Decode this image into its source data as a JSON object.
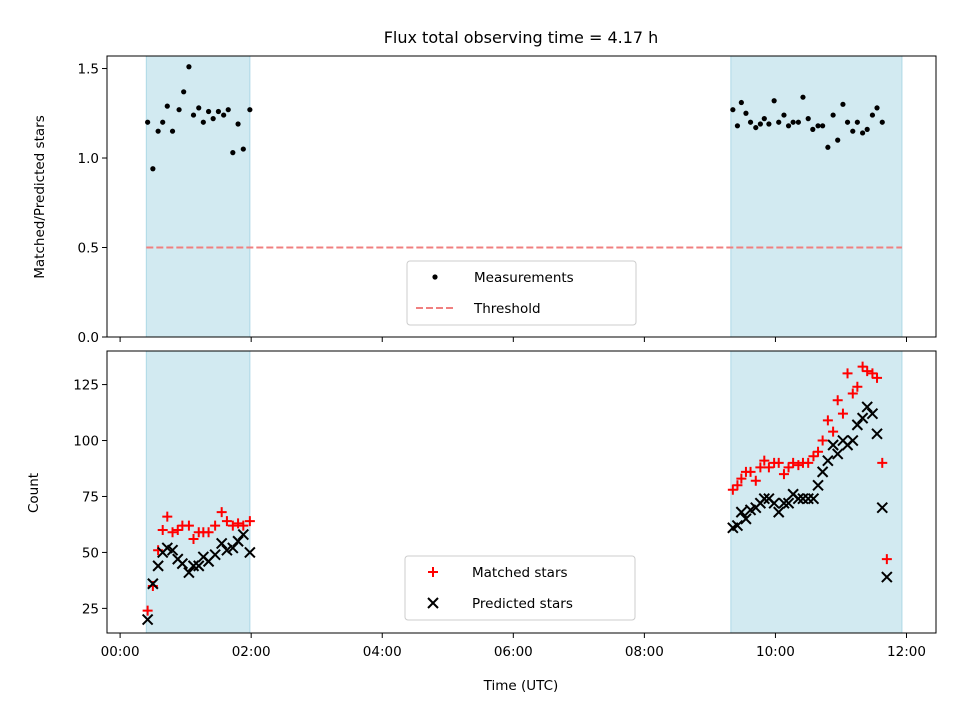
{
  "chart_data": [
    {
      "type": "scatter",
      "title": "Flux total observing time = 4.17 h",
      "xlabel": "",
      "ylabel": "Matched/Predicted stars",
      "xlim": [
        -0.2,
        12.45
      ],
      "ylim": [
        0,
        1.57
      ],
      "yticks": [
        0,
        0.5,
        1.0,
        1.5
      ],
      "ytick_labels": [
        "0.0",
        "0.5",
        "1.0",
        "1.5"
      ],
      "xticks": [
        0,
        2,
        4,
        6,
        8,
        10,
        12
      ],
      "observing_windows": [
        [
          0.4,
          1.98
        ],
        [
          9.32,
          11.93
        ]
      ],
      "window_color": "#add8e6",
      "threshold": {
        "value": 0.5,
        "x_range": [
          0.4,
          11.93
        ],
        "color": "#f08080"
      },
      "series": [
        {
          "name": "Measurements",
          "marker": "dot",
          "color": "#000000",
          "points": [
            [
              0.42,
              1.2
            ],
            [
              0.5,
              0.94
            ],
            [
              0.58,
              1.15
            ],
            [
              0.65,
              1.2
            ],
            [
              0.72,
              1.29
            ],
            [
              0.8,
              1.15
            ],
            [
              0.9,
              1.27
            ],
            [
              0.97,
              1.37
            ],
            [
              1.05,
              1.51
            ],
            [
              1.12,
              1.24
            ],
            [
              1.2,
              1.28
            ],
            [
              1.27,
              1.2
            ],
            [
              1.35,
              1.26
            ],
            [
              1.42,
              1.22
            ],
            [
              1.5,
              1.26
            ],
            [
              1.58,
              1.24
            ],
            [
              1.65,
              1.27
            ],
            [
              1.72,
              1.03
            ],
            [
              1.8,
              1.19
            ],
            [
              1.88,
              1.05
            ],
            [
              1.98,
              1.27
            ],
            [
              9.35,
              1.27
            ],
            [
              9.42,
              1.18
            ],
            [
              9.48,
              1.31
            ],
            [
              9.55,
              1.25
            ],
            [
              9.62,
              1.2
            ],
            [
              9.7,
              1.17
            ],
            [
              9.77,
              1.19
            ],
            [
              9.83,
              1.22
            ],
            [
              9.9,
              1.19
            ],
            [
              9.98,
              1.32
            ],
            [
              10.05,
              1.2
            ],
            [
              10.13,
              1.24
            ],
            [
              10.2,
              1.18
            ],
            [
              10.27,
              1.2
            ],
            [
              10.35,
              1.2
            ],
            [
              10.42,
              1.34
            ],
            [
              10.5,
              1.22
            ],
            [
              10.57,
              1.16
            ],
            [
              10.65,
              1.18
            ],
            [
              10.72,
              1.18
            ],
            [
              10.8,
              1.06
            ],
            [
              10.88,
              1.24
            ],
            [
              10.95,
              1.1
            ],
            [
              11.03,
              1.3
            ],
            [
              11.1,
              1.2
            ],
            [
              11.18,
              1.15
            ],
            [
              11.25,
              1.2
            ],
            [
              11.33,
              1.14
            ],
            [
              11.4,
              1.16
            ],
            [
              11.48,
              1.24
            ],
            [
              11.55,
              1.28
            ],
            [
              11.63,
              1.2
            ]
          ]
        }
      ],
      "legend": {
        "entries": [
          "Measurements",
          "Threshold"
        ],
        "position": "lower center"
      }
    },
    {
      "type": "scatter",
      "title": "",
      "xlabel": "Time (UTC)",
      "ylabel": "Count",
      "xlim": [
        -0.2,
        12.45
      ],
      "ylim": [
        14,
        140
      ],
      "yticks": [
        25,
        50,
        75,
        100,
        125
      ],
      "ytick_labels": [
        "25",
        "50",
        "75",
        "100",
        "125"
      ],
      "xticks": [
        0,
        2,
        4,
        6,
        8,
        10,
        12
      ],
      "xtick_labels": [
        "00:00",
        "02:00",
        "04:00",
        "06:00",
        "08:00",
        "10:00",
        "12:00"
      ],
      "observing_windows": [
        [
          0.4,
          1.98
        ],
        [
          9.32,
          11.93
        ]
      ],
      "window_color": "#add8e6",
      "series": [
        {
          "name": "Matched stars",
          "marker": "plus",
          "color": "#ff0000",
          "points": [
            [
              0.42,
              24
            ],
            [
              0.5,
              35
            ],
            [
              0.58,
              51
            ],
            [
              0.65,
              60
            ],
            [
              0.72,
              66
            ],
            [
              0.8,
              59
            ],
            [
              0.88,
              60
            ],
            [
              0.95,
              62
            ],
            [
              1.05,
              62
            ],
            [
              1.12,
              56
            ],
            [
              1.2,
              59
            ],
            [
              1.27,
              59
            ],
            [
              1.35,
              59
            ],
            [
              1.45,
              62
            ],
            [
              1.55,
              68
            ],
            [
              1.63,
              64
            ],
            [
              1.72,
              62
            ],
            [
              1.8,
              63
            ],
            [
              1.88,
              62
            ],
            [
              1.98,
              64
            ],
            [
              9.35,
              78
            ],
            [
              9.42,
              80
            ],
            [
              9.48,
              83
            ],
            [
              9.55,
              86
            ],
            [
              9.62,
              86
            ],
            [
              9.7,
              82
            ],
            [
              9.77,
              88
            ],
            [
              9.83,
              91
            ],
            [
              9.9,
              88
            ],
            [
              9.98,
              90
            ],
            [
              10.05,
              90
            ],
            [
              10.13,
              85
            ],
            [
              10.2,
              88
            ],
            [
              10.27,
              90
            ],
            [
              10.35,
              89
            ],
            [
              10.42,
              90
            ],
            [
              10.5,
              90
            ],
            [
              10.58,
              93
            ],
            [
              10.65,
              95
            ],
            [
              10.72,
              100
            ],
            [
              10.8,
              109
            ],
            [
              10.88,
              104
            ],
            [
              10.95,
              118
            ],
            [
              11.03,
              112
            ],
            [
              11.1,
              130
            ],
            [
              11.18,
              121
            ],
            [
              11.25,
              124
            ],
            [
              11.33,
              133
            ],
            [
              11.4,
              131
            ],
            [
              11.48,
              130
            ],
            [
              11.55,
              128
            ],
            [
              11.63,
              90
            ],
            [
              11.7,
              47
            ]
          ]
        },
        {
          "name": "Predicted stars",
          "marker": "x",
          "color": "#000000",
          "points": [
            [
              0.42,
              20
            ],
            [
              0.5,
              36
            ],
            [
              0.58,
              44
            ],
            [
              0.65,
              50
            ],
            [
              0.72,
              52
            ],
            [
              0.8,
              51
            ],
            [
              0.88,
              47
            ],
            [
              0.95,
              45
            ],
            [
              1.05,
              41
            ],
            [
              1.12,
              44
            ],
            [
              1.2,
              44
            ],
            [
              1.27,
              48
            ],
            [
              1.35,
              46
            ],
            [
              1.45,
              49
            ],
            [
              1.55,
              54
            ],
            [
              1.63,
              51
            ],
            [
              1.72,
              52
            ],
            [
              1.8,
              55
            ],
            [
              1.88,
              58
            ],
            [
              1.98,
              50
            ],
            [
              9.35,
              61
            ],
            [
              9.42,
              62
            ],
            [
              9.48,
              68
            ],
            [
              9.55,
              65
            ],
            [
              9.62,
              69
            ],
            [
              9.7,
              70
            ],
            [
              9.77,
              72
            ],
            [
              9.83,
              74
            ],
            [
              9.9,
              74
            ],
            [
              9.98,
              72
            ],
            [
              10.05,
              68
            ],
            [
              10.13,
              72
            ],
            [
              10.2,
              72
            ],
            [
              10.27,
              76
            ],
            [
              10.35,
              74
            ],
            [
              10.42,
              74
            ],
            [
              10.5,
              74
            ],
            [
              10.58,
              74
            ],
            [
              10.65,
              80
            ],
            [
              10.72,
              86
            ],
            [
              10.8,
              91
            ],
            [
              10.88,
              98
            ],
            [
              10.95,
              94
            ],
            [
              11.03,
              100
            ],
            [
              11.1,
              98
            ],
            [
              11.18,
              100
            ],
            [
              11.25,
              107
            ],
            [
              11.33,
              110
            ],
            [
              11.4,
              115
            ],
            [
              11.48,
              112
            ],
            [
              11.55,
              103
            ],
            [
              11.63,
              70
            ],
            [
              11.7,
              39
            ]
          ]
        }
      ],
      "legend": {
        "entries": [
          "Matched stars",
          "Predicted stars"
        ],
        "position": "lower center"
      }
    }
  ]
}
